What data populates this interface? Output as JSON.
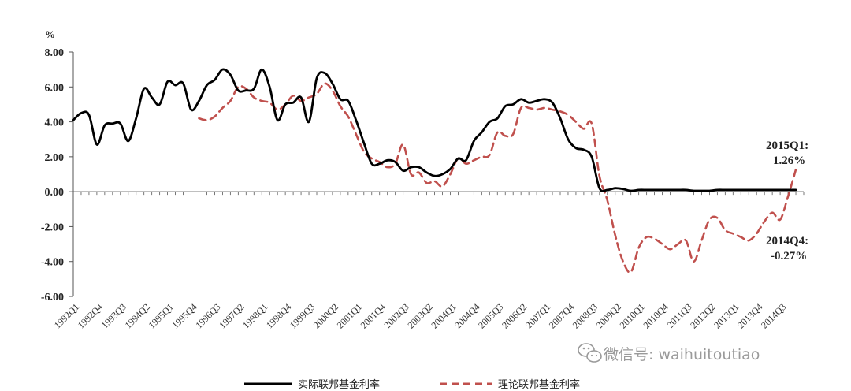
{
  "chart_data": {
    "type": "line",
    "unit": "%",
    "ylim": [
      -6,
      8
    ],
    "yticks": [
      "8.00",
      "6.00",
      "4.00",
      "2.00",
      "0.00",
      "-2.00",
      "-4.00",
      "-6.00"
    ],
    "ytick_values": [
      8,
      6,
      4,
      2,
      0,
      -2,
      -4,
      -6
    ],
    "x_range": [
      1992.0,
      2015.25
    ],
    "xtick_labels": [
      "1992Q1",
      "1992Q4",
      "1993Q3",
      "1994Q2",
      "1995Q1",
      "1995Q4",
      "1996Q3",
      "1997Q2",
      "1998Q1",
      "1998Q4",
      "1999Q3",
      "2000Q2",
      "2001Q1",
      "2001Q4",
      "2002Q3",
      "2003Q2",
      "2004Q1",
      "2004Q4",
      "2005Q3",
      "2006Q2",
      "2007Q1",
      "2007Q4",
      "2008Q3",
      "2009Q2",
      "2010Q1",
      "2010Q4",
      "2011Q3",
      "2012Q2",
      "2013Q1",
      "2013Q4",
      "2014Q3"
    ],
    "series": [
      {
        "name": "实际联邦基金利率",
        "color": "#000000",
        "style": "solid",
        "x": [
          1992.0,
          1992.25,
          1992.5,
          1992.75,
          1993.0,
          1993.25,
          1993.5,
          1993.75,
          1994.0,
          1994.25,
          1994.5,
          1994.75,
          1995.0,
          1995.25,
          1995.5,
          1995.75,
          1996.0,
          1996.25,
          1996.5,
          1996.75,
          1997.0,
          1997.25,
          1997.5,
          1997.75,
          1998.0,
          1998.25,
          1998.5,
          1998.75,
          1999.0,
          1999.25,
          1999.5,
          1999.75,
          2000.0,
          2000.25,
          2000.5,
          2000.75,
          2001.0,
          2001.25,
          2001.5,
          2001.75,
          2002.0,
          2002.25,
          2002.5,
          2002.75,
          2003.0,
          2003.25,
          2003.5,
          2003.75,
          2004.0,
          2004.25,
          2004.5,
          2004.75,
          2005.0,
          2005.25,
          2005.5,
          2005.75,
          2006.0,
          2006.25,
          2006.5,
          2006.75,
          2007.0,
          2007.25,
          2007.5,
          2007.75,
          2008.0,
          2008.25,
          2008.5,
          2008.75,
          2009.0,
          2009.25,
          2009.5,
          2009.75,
          2010.0,
          2010.25,
          2010.5,
          2010.75,
          2011.0,
          2011.25,
          2011.5,
          2011.75,
          2012.0,
          2012.25,
          2012.5,
          2012.75,
          2013.0,
          2013.25,
          2013.5,
          2013.75,
          2014.0,
          2014.25,
          2014.5,
          2014.75,
          2015.0
        ],
        "y": [
          4.1,
          4.5,
          4.4,
          2.7,
          3.8,
          3.9,
          3.9,
          2.9,
          4.2,
          5.9,
          5.4,
          5.0,
          6.3,
          6.1,
          6.2,
          4.7,
          5.2,
          6.1,
          6.4,
          7.0,
          6.7,
          5.8,
          5.8,
          5.9,
          7.0,
          6.0,
          4.1,
          5.0,
          5.1,
          5.4,
          4.0,
          6.5,
          6.8,
          6.2,
          5.3,
          5.2,
          4.1,
          2.8,
          1.6,
          1.6,
          1.8,
          1.7,
          1.2,
          1.4,
          1.4,
          1.1,
          0.9,
          1.0,
          1.3,
          1.9,
          1.8,
          2.9,
          3.4,
          4.0,
          4.2,
          4.9,
          5.0,
          5.3,
          5.1,
          5.2,
          5.3,
          5.1,
          4.2,
          3.0,
          2.5,
          2.4,
          2.0,
          0.2,
          0.1,
          0.2,
          0.15,
          0.05,
          0.1,
          0.1,
          0.1,
          0.1,
          0.1,
          0.1,
          0.1,
          0.05,
          0.05,
          0.05,
          0.1,
          0.1,
          0.1,
          0.1,
          0.1,
          0.1,
          0.1,
          0.1,
          0.1,
          0.1,
          0.1
        ]
      },
      {
        "name": "理论联邦基金利率",
        "color": "#c0504d",
        "style": "dashed",
        "x": [
          1996.0,
          1996.25,
          1996.5,
          1996.75,
          1997.0,
          1997.25,
          1997.5,
          1997.75,
          1998.0,
          1998.25,
          1998.5,
          1998.75,
          1999.0,
          1999.25,
          1999.5,
          1999.75,
          2000.0,
          2000.25,
          2000.5,
          2000.75,
          2001.0,
          2001.25,
          2001.5,
          2001.75,
          2002.0,
          2002.25,
          2002.5,
          2002.75,
          2003.0,
          2003.25,
          2003.5,
          2003.75,
          2004.0,
          2004.25,
          2004.5,
          2004.75,
          2005.0,
          2005.25,
          2005.5,
          2005.75,
          2006.0,
          2006.25,
          2006.5,
          2006.75,
          2007.0,
          2007.25,
          2007.5,
          2007.75,
          2008.0,
          2008.25,
          2008.5,
          2008.75,
          2009.0,
          2009.25,
          2009.5,
          2009.75,
          2010.0,
          2010.25,
          2010.5,
          2010.75,
          2011.0,
          2011.25,
          2011.5,
          2011.75,
          2012.0,
          2012.25,
          2012.5,
          2012.75,
          2013.0,
          2013.25,
          2013.5,
          2013.75,
          2014.0,
          2014.25,
          2014.5,
          2014.75,
          2015.0
        ],
        "y": [
          4.2,
          4.1,
          4.3,
          4.8,
          5.2,
          6.0,
          5.9,
          5.4,
          5.2,
          5.1,
          4.7,
          5.0,
          5.5,
          5.2,
          5.4,
          5.6,
          6.2,
          5.8,
          4.9,
          4.3,
          3.3,
          2.3,
          1.9,
          1.7,
          1.4,
          1.6,
          2.7,
          1.0,
          1.1,
          0.5,
          0.6,
          0.3,
          1.0,
          1.9,
          1.6,
          1.8,
          2.0,
          2.1,
          3.4,
          3.2,
          3.3,
          4.8,
          4.8,
          4.7,
          4.8,
          4.7,
          4.6,
          4.4,
          4.0,
          3.6,
          3.9,
          0.9,
          -0.5,
          -2.5,
          -4.0,
          -4.6,
          -3.2,
          -2.6,
          -2.7,
          -3.0,
          -3.3,
          -3.0,
          -2.8,
          -4.0,
          -2.8,
          -1.6,
          -1.5,
          -2.2,
          -2.4,
          -2.6,
          -2.8,
          -2.4,
          -1.7,
          -1.2,
          -1.6,
          -0.27,
          1.26
        ]
      }
    ],
    "annotations": [
      {
        "lines": [
          "2015Q1:",
          "1.26%"
        ]
      },
      {
        "lines": [
          "2014Q4:",
          "-0.27%"
        ]
      }
    ],
    "legend": {
      "placement": "bottom"
    },
    "grid": false
  },
  "watermark": {
    "text": "微信号: waihuitoutiao",
    "icon": "wechat-icon"
  }
}
